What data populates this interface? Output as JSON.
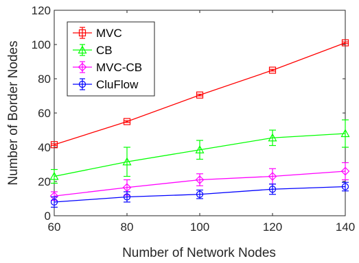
{
  "chart_data": {
    "type": "line",
    "title": "",
    "xlabel": "Number of Network Nodes",
    "ylabel": "Number of Border Nodes",
    "x": [
      60,
      80,
      100,
      120,
      140
    ],
    "xlim": [
      60,
      140
    ],
    "ylim": [
      0,
      120
    ],
    "xticks": [
      "60",
      "80",
      "100",
      "120",
      "140"
    ],
    "yticks": [
      "0",
      "20",
      "40",
      "60",
      "80",
      "100",
      "120"
    ],
    "grid": false,
    "legend_position": "top-left",
    "series": [
      {
        "name": "MVC",
        "color": "#ff0000",
        "marker": "square",
        "values": [
          41.5,
          55,
          70.5,
          85,
          101
        ],
        "errors": [
          0.5,
          0.5,
          0.5,
          0.5,
          0.5
        ]
      },
      {
        "name": "CB",
        "color": "#00ff00",
        "marker": "triangle",
        "values": [
          23,
          31.5,
          38.5,
          45.5,
          48
        ],
        "errors": [
          4,
          8.5,
          5.5,
          4.5,
          8
        ]
      },
      {
        "name": "MVC-CB",
        "color": "#ff00ff",
        "marker": "diamond",
        "values": [
          11.5,
          16.5,
          21,
          23,
          26
        ],
        "errors": [
          2.5,
          4.5,
          3.5,
          4.5,
          5
        ]
      },
      {
        "name": "CluFlow",
        "color": "#0000ff",
        "marker": "circle",
        "values": [
          8,
          11,
          12.5,
          15.5,
          17
        ],
        "errors": [
          3,
          3,
          2.5,
          3,
          2.5
        ]
      }
    ]
  }
}
